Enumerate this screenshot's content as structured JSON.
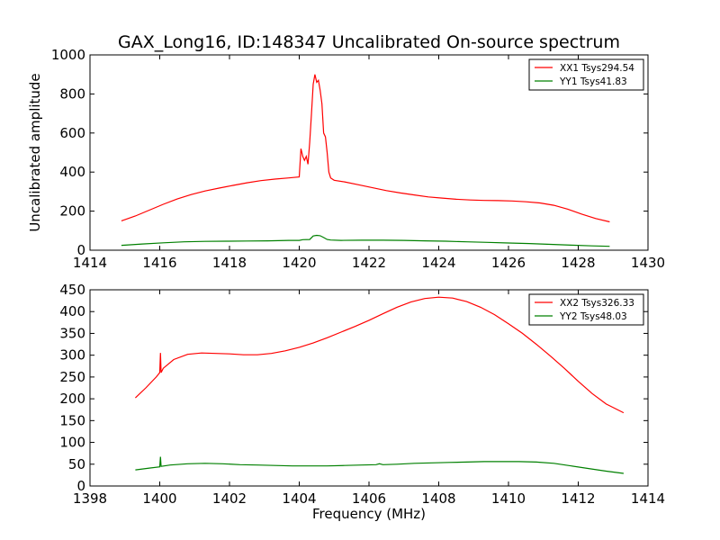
{
  "figure": {
    "title": "GAX_Long16, ID:148347 Uncalibrated On-source spectrum"
  },
  "chart_data": [
    {
      "type": "line",
      "title": "GAX_Long16, ID:148347 Uncalibrated On-source spectrum",
      "xlabel": "",
      "ylabel": "Uncalibrated amplitude",
      "xlim": [
        1414,
        1430
      ],
      "ylim": [
        0,
        1000
      ],
      "xticks": [
        "1414",
        "1416",
        "1418",
        "1420",
        "1422",
        "1424",
        "1426",
        "1428",
        "1430"
      ],
      "yticks": [
        "0",
        "200",
        "400",
        "600",
        "800",
        "1000"
      ],
      "legend_position": "top-right",
      "series": [
        {
          "name": "XX1 Tsys294.54",
          "color": "#ff0000",
          "x": [
            1414.9,
            1415.3,
            1415.7,
            1416.1,
            1416.5,
            1416.9,
            1417.3,
            1417.7,
            1418.1,
            1418.5,
            1418.9,
            1419.3,
            1419.7,
            1420.0,
            1420.05,
            1420.1,
            1420.15,
            1420.2,
            1420.25,
            1420.3,
            1420.35,
            1420.4,
            1420.45,
            1420.5,
            1420.55,
            1420.6,
            1420.65,
            1420.7,
            1420.75,
            1420.8,
            1420.85,
            1420.9,
            1421.0,
            1421.3,
            1421.7,
            1422.1,
            1422.5,
            1422.9,
            1423.3,
            1423.7,
            1424.1,
            1424.5,
            1424.9,
            1425.3,
            1425.7,
            1426.1,
            1426.5,
            1426.9,
            1427.3,
            1427.7,
            1428.1,
            1428.5,
            1428.9
          ],
          "values": [
            150,
            175,
            205,
            235,
            262,
            285,
            303,
            318,
            332,
            345,
            356,
            364,
            370,
            375,
            520,
            480,
            460,
            480,
            440,
            550,
            700,
            850,
            900,
            860,
            870,
            820,
            750,
            600,
            580,
            500,
            400,
            370,
            358,
            350,
            335,
            320,
            305,
            293,
            283,
            273,
            267,
            261,
            257,
            255,
            254,
            252,
            248,
            242,
            230,
            210,
            185,
            162,
            145
          ]
        },
        {
          "name": "YY1 Tsys41.83",
          "color": "#008000",
          "x": [
            1414.9,
            1415.5,
            1416.1,
            1416.7,
            1417.3,
            1417.9,
            1418.5,
            1419.1,
            1419.7,
            1420.0,
            1420.1,
            1420.3,
            1420.4,
            1420.5,
            1420.6,
            1420.7,
            1420.8,
            1420.9,
            1421.2,
            1421.8,
            1422.4,
            1423.0,
            1423.6,
            1424.2,
            1424.8,
            1425.4,
            1426.0,
            1426.6,
            1427.2,
            1427.8,
            1428.4,
            1428.9
          ],
          "values": [
            25,
            32,
            38,
            43,
            45,
            46,
            47,
            48,
            50,
            50,
            54,
            55,
            73,
            76,
            74,
            65,
            55,
            52,
            50,
            51,
            51,
            50,
            48,
            46,
            43,
            40,
            37,
            34,
            30,
            26,
            22,
            20
          ]
        }
      ]
    },
    {
      "type": "line",
      "title": "",
      "xlabel": "Frequency (MHz)",
      "ylabel": "",
      "xlim": [
        1398,
        1414
      ],
      "ylim": [
        0,
        450
      ],
      "xticks": [
        "1398",
        "1400",
        "1402",
        "1404",
        "1406",
        "1408",
        "1410",
        "1412",
        "1414"
      ],
      "yticks": [
        "0",
        "50",
        "100",
        "150",
        "200",
        "250",
        "300",
        "350",
        "400",
        "450"
      ],
      "legend_position": "top-right",
      "series": [
        {
          "name": "XX2 Tsys326.33",
          "color": "#ff0000",
          "x": [
            1399.3,
            1399.6,
            1399.9,
            1400.0,
            1400.02,
            1400.04,
            1400.1,
            1400.4,
            1400.8,
            1401.2,
            1401.6,
            1402.0,
            1402.4,
            1402.8,
            1403.2,
            1403.6,
            1404.0,
            1404.4,
            1404.8,
            1405.2,
            1405.6,
            1406.0,
            1406.4,
            1406.8,
            1407.2,
            1407.6,
            1408.0,
            1408.4,
            1408.8,
            1409.2,
            1409.6,
            1410.0,
            1410.4,
            1410.8,
            1411.2,
            1411.6,
            1412.0,
            1412.4,
            1412.8,
            1413.3
          ],
          "values": [
            202,
            225,
            250,
            260,
            305,
            260,
            270,
            290,
            302,
            305,
            304,
            303,
            301,
            301,
            304,
            310,
            318,
            328,
            340,
            353,
            366,
            380,
            395,
            410,
            422,
            430,
            433,
            431,
            423,
            410,
            393,
            372,
            350,
            325,
            298,
            270,
            240,
            212,
            188,
            168
          ]
        },
        {
          "name": "YY2 Tsys48.03",
          "color": "#008000",
          "x": [
            1399.3,
            1399.7,
            1400.0,
            1400.02,
            1400.04,
            1400.3,
            1400.8,
            1401.3,
            1401.8,
            1402.3,
            1402.8,
            1403.3,
            1403.8,
            1404.3,
            1404.8,
            1405.3,
            1405.8,
            1406.2,
            1406.3,
            1406.4,
            1406.8,
            1407.3,
            1407.8,
            1408.3,
            1408.8,
            1409.3,
            1409.8,
            1410.3,
            1410.8,
            1411.3,
            1411.8,
            1412.3,
            1412.8,
            1413.3
          ],
          "values": [
            37,
            41,
            44,
            67,
            45,
            48,
            51,
            52,
            51,
            49,
            48,
            47,
            46,
            46,
            46,
            47,
            48,
            49,
            51,
            49,
            50,
            52,
            53,
            54,
            55,
            56,
            56,
            56,
            55,
            52,
            46,
            40,
            34,
            29
          ]
        }
      ]
    }
  ]
}
